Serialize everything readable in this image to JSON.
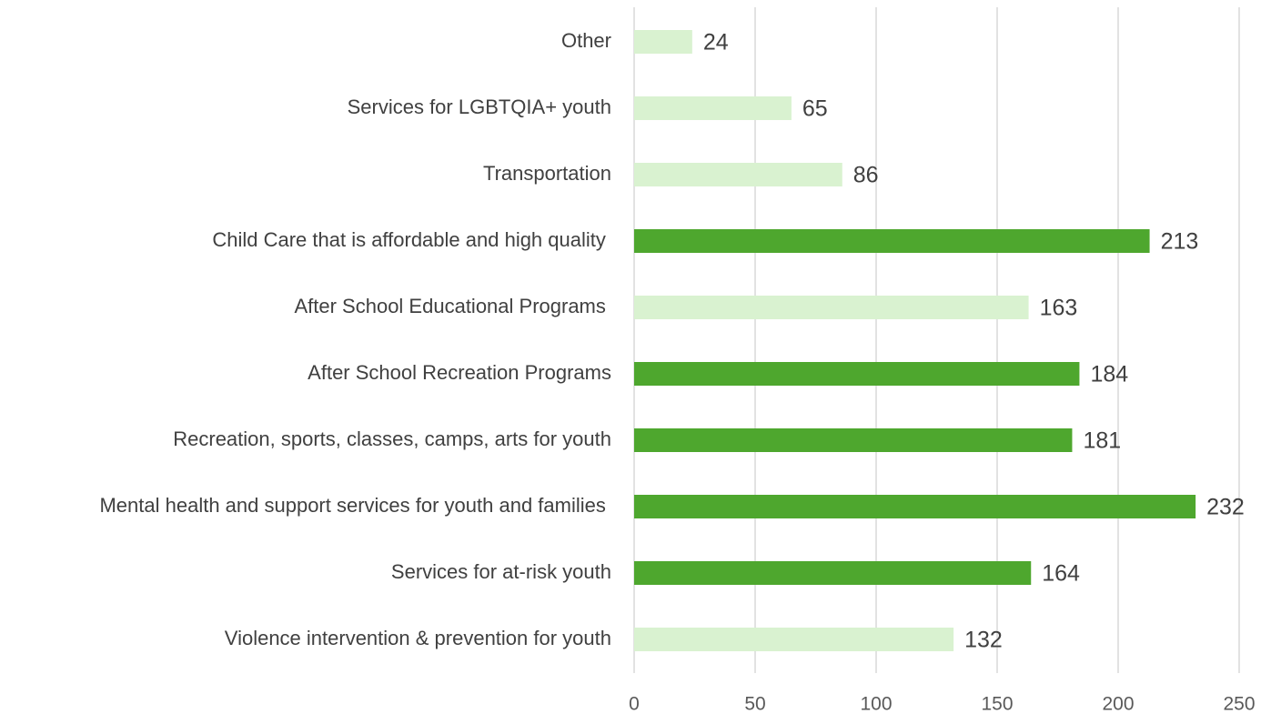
{
  "chart_data": {
    "type": "hbar",
    "categories": [
      "Other",
      "Services for LGBTQIA+ youth",
      "Transportation",
      "Child Care that is affordable and high quality ",
      "After School Educational Programs ",
      "After School Recreation Programs",
      "Recreation, sports, classes, camps, arts for youth",
      "Mental health and support services for youth and families ",
      "Services for at-risk youth",
      "Violence intervention & prevention for youth"
    ],
    "values": [
      24,
      65,
      86,
      213,
      163,
      184,
      181,
      232,
      164,
      132
    ],
    "colors": [
      "#d9f2d0",
      "#d9f2d0",
      "#d9f2d0",
      "#4ea72e",
      "#d9f2d0",
      "#4ea72e",
      "#4ea72e",
      "#4ea72e",
      "#4ea72e",
      "#d9f2d0"
    ],
    "xlim": [
      0,
      250
    ],
    "xticks": [
      0,
      50,
      100,
      150,
      200,
      250
    ],
    "grid": true
  }
}
